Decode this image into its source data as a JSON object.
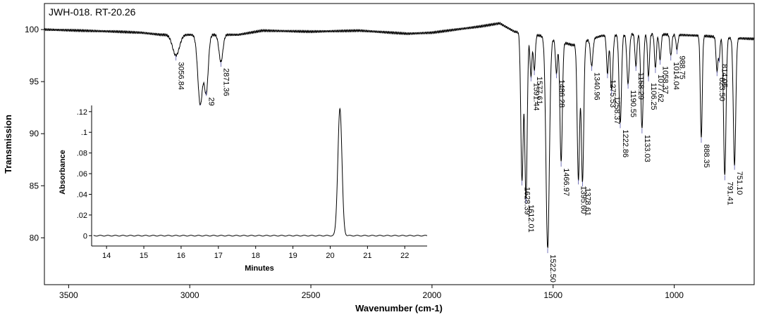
{
  "chart_data": [
    {
      "type": "line",
      "title": "JWH-018. RT-20.26",
      "xlabel": "Wavenumber (cm-1)",
      "ylabel": "Transmission",
      "xlim": [
        3600,
        670
      ],
      "ylim": [
        75.5,
        102.5
      ],
      "x_ticks": [
        {
          "value": 3500,
          "label": "3500"
        },
        {
          "value": 3000,
          "label": "3000"
        },
        {
          "value": 2500,
          "label": "2500"
        },
        {
          "value": 2000,
          "label": "2000"
        },
        {
          "value": 1500,
          "label": "1500"
        },
        {
          "value": 1000,
          "label": "1000"
        }
      ],
      "y_ticks": [
        {
          "value": 100,
          "label": "100"
        },
        {
          "value": 95,
          "label": "95"
        },
        {
          "value": 90,
          "label": "90"
        },
        {
          "value": 85,
          "label": "85"
        },
        {
          "value": 80,
          "label": "80"
        }
      ],
      "baseline": [
        [
          3600,
          100.0
        ],
        [
          3450,
          99.9
        ],
        [
          3300,
          99.8
        ],
        [
          3200,
          99.7
        ],
        [
          3120,
          99.5
        ],
        [
          2800,
          99.5
        ],
        [
          2700,
          99.9
        ],
        [
          2500,
          99.8
        ],
        [
          2300,
          99.9
        ],
        [
          2100,
          99.6
        ],
        [
          2000,
          99.7
        ],
        [
          1900,
          100.0
        ],
        [
          1800,
          100.3
        ],
        [
          1720,
          100.6
        ],
        [
          1660,
          99.8
        ],
        [
          1550,
          99.4
        ],
        [
          1420,
          98.5
        ],
        [
          1300,
          99.4
        ],
        [
          1150,
          99.6
        ],
        [
          1000,
          99.5
        ],
        [
          880,
          99.4
        ],
        [
          780,
          99.2
        ],
        [
          670,
          99.1
        ]
      ],
      "peaks": [
        {
          "x": 3056.84,
          "y": 97.5,
          "w": 14,
          "label": "3056.84"
        },
        {
          "x": 2956.62,
          "y": 92.8,
          "w": 10,
          "label": "2956.62"
        },
        {
          "x": 2931.72,
          "y": 94.1,
          "w": 8,
          "label": "2931.72"
        },
        {
          "x": 2871.36,
          "y": 96.9,
          "w": 8,
          "label": "2871.36"
        },
        {
          "x": 1628.39,
          "y": 85.5,
          "w": 5,
          "label": "1628.39"
        },
        {
          "x": 1612.01,
          "y": 83.8,
          "w": 5,
          "label": "1612.01"
        },
        {
          "x": 1591.44,
          "y": 95.5,
          "w": 4,
          "label": "1591.44"
        },
        {
          "x": 1577.61,
          "y": 96.1,
          "w": 4,
          "label": "1577.61"
        },
        {
          "x": 1522.5,
          "y": 79.0,
          "w": 7,
          "label": "1522.50"
        },
        {
          "x": 1486.28,
          "y": 95.8,
          "w": 4,
          "label": "1486.28"
        },
        {
          "x": 1466.97,
          "y": 87.3,
          "w": 5,
          "label": "1466.97"
        },
        {
          "x": 1395.6,
          "y": 85.6,
          "w": 5,
          "label": "1395.60"
        },
        {
          "x": 1378.61,
          "y": 85.4,
          "w": 5,
          "label": "1378.61"
        },
        {
          "x": 1340.96,
          "y": 96.5,
          "w": 5,
          "label": "1340.96"
        },
        {
          "x": 1275.53,
          "y": 95.8,
          "w": 4,
          "label": "1275.53"
        },
        {
          "x": 1258.37,
          "y": 94.2,
          "w": 5,
          "label": "1258.37"
        },
        {
          "x": 1222.86,
          "y": 91.0,
          "w": 5,
          "label": "1222.86"
        },
        {
          "x": 1190.55,
          "y": 94.8,
          "w": 5,
          "label": "1190.55"
        },
        {
          "x": 1158.29,
          "y": 96.5,
          "w": 4,
          "label": "1158.29"
        },
        {
          "x": 1133.03,
          "y": 90.5,
          "w": 5,
          "label": "1133.03"
        },
        {
          "x": 1106.25,
          "y": 95.5,
          "w": 4,
          "label": "1106.25"
        },
        {
          "x": 1077.62,
          "y": 96.3,
          "w": 4,
          "label": "1077.62"
        },
        {
          "x": 1058.37,
          "y": 97.1,
          "w": 4,
          "label": "1058.37"
        },
        {
          "x": 1014.04,
          "y": 97.5,
          "w": 4,
          "label": "1014.04"
        },
        {
          "x": 988.75,
          "y": 98.1,
          "w": 4,
          "label": "988.75"
        },
        {
          "x": 888.35,
          "y": 89.6,
          "w": 4,
          "label": "888.35"
        },
        {
          "x": 823.5,
          "y": 96.0,
          "w": 4,
          "label": "823.50"
        },
        {
          "x": 814.05,
          "y": 97.3,
          "w": 3,
          "label": "814.05"
        },
        {
          "x": 791.41,
          "y": 86.0,
          "w": 5,
          "label": "791.41"
        },
        {
          "x": 751.1,
          "y": 87.0,
          "w": 5,
          "label": "751.10"
        }
      ]
    },
    {
      "type": "line",
      "xlabel": "Minutes",
      "ylabel": "Absorbance",
      "xlim": [
        13.6,
        22.6
      ],
      "ylim": [
        -0.01,
        0.126
      ],
      "x_ticks": [
        "14",
        "15",
        "16",
        "17",
        "18",
        "19",
        "20",
        "21",
        "22"
      ],
      "y_ticks": [
        {
          "value": 0.12,
          "label": ".12"
        },
        {
          "value": 0.1,
          "label": ".1"
        },
        {
          "value": 0.08,
          "label": ".08"
        },
        {
          "value": 0.06,
          "label": ".06"
        },
        {
          "value": 0.04,
          "label": ".04"
        },
        {
          "value": 0.02,
          "label": ".02"
        },
        {
          "value": 0,
          "label": "0"
        }
      ],
      "peak": {
        "x": 20.26,
        "y": 0.123,
        "sigma": 0.055
      }
    }
  ]
}
